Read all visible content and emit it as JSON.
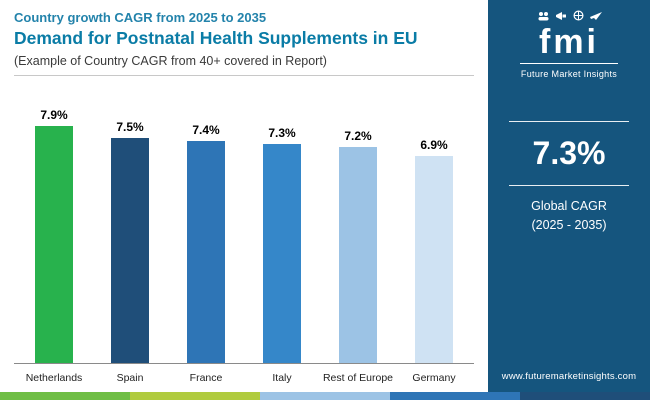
{
  "header": {
    "subtitle": "Country growth CAGR from 2025 to 2035",
    "title": "Demand for Postnatal Health Supplements in EU",
    "tagline": "(Example of Country CAGR from 40+ covered in Report)"
  },
  "chart_data": {
    "type": "bar",
    "title": "Demand for Postnatal Health Supplements in EU",
    "categories": [
      "Netherlands",
      "Spain",
      "France",
      "Italy",
      "Rest of Europe",
      "Germany"
    ],
    "values": [
      7.9,
      7.5,
      7.4,
      7.3,
      7.2,
      6.9
    ],
    "value_labels": [
      "7.9%",
      "7.5%",
      "7.4%",
      "7.3%",
      "7.2%",
      "6.9%"
    ],
    "bar_colors": [
      "#28b24d",
      "#1f4e79",
      "#2e75b6",
      "#3587c9",
      "#9cc3e5",
      "#cfe2f3"
    ],
    "xlabel": "",
    "ylabel": "",
    "ylim": [
      0,
      8
    ],
    "grid": false,
    "legend": false
  },
  "sidebar": {
    "background": "#15557e",
    "logo": {
      "text": "fmi",
      "tagline": "Future Market Insights"
    },
    "stat": {
      "value": "7.3%",
      "label_line1": "Global CAGR",
      "label_line2": "(2025 - 2035)"
    },
    "website": "www.futuremarketinsights.com"
  },
  "footer_strip_colors": [
    "#6fbe45",
    "#b0cb3e",
    "#9cc3e5",
    "#2e75b6",
    "#1f4e79"
  ]
}
